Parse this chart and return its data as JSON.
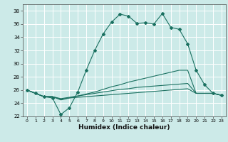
{
  "xlabel": "Humidex (Indice chaleur)",
  "bg_color": "#cceae8",
  "grid_color": "#ffffff",
  "line_color": "#1a7060",
  "x": [
    0,
    1,
    2,
    3,
    4,
    5,
    6,
    7,
    8,
    9,
    10,
    11,
    12,
    13,
    14,
    15,
    16,
    17,
    18,
    19,
    20,
    21,
    22,
    23
  ],
  "series1": [
    26,
    25.5,
    25.0,
    24.8,
    22.3,
    23.3,
    25.7,
    29.0,
    32.0,
    34.5,
    36.3,
    37.5,
    37.2,
    36.1,
    36.2,
    36.0,
    37.6,
    35.5,
    35.2,
    33.0,
    29.0,
    26.8,
    25.5,
    25.2
  ],
  "series2": [
    26,
    25.5,
    25.0,
    25.0,
    24.5,
    24.8,
    25.1,
    25.4,
    25.7,
    26.1,
    26.5,
    26.8,
    27.2,
    27.5,
    27.8,
    28.1,
    28.4,
    28.7,
    29.0,
    29.0,
    25.5,
    25.5,
    25.5,
    25.2
  ],
  "series3": [
    26,
    25.5,
    25.0,
    25.0,
    24.7,
    24.9,
    25.1,
    25.3,
    25.5,
    25.7,
    25.9,
    26.1,
    26.2,
    26.4,
    26.5,
    26.6,
    26.7,
    26.8,
    26.9,
    27.0,
    25.5,
    25.5,
    25.5,
    25.2
  ],
  "series4": [
    26,
    25.5,
    25.0,
    25.0,
    24.6,
    24.8,
    24.9,
    25.0,
    25.1,
    25.2,
    25.3,
    25.4,
    25.5,
    25.6,
    25.7,
    25.8,
    25.9,
    26.0,
    26.1,
    26.2,
    25.5,
    25.5,
    25.5,
    25.2
  ],
  "ylim": [
    22,
    39
  ],
  "xlim": [
    -0.5,
    23.5
  ],
  "yticks": [
    22,
    24,
    26,
    28,
    30,
    32,
    34,
    36,
    38
  ],
  "xticks": [
    0,
    1,
    2,
    3,
    4,
    5,
    6,
    7,
    8,
    9,
    10,
    11,
    12,
    13,
    14,
    15,
    16,
    17,
    18,
    19,
    20,
    21,
    22,
    23
  ],
  "xtick_labels": [
    "0",
    "1",
    "2",
    "3",
    "4",
    "5",
    "6",
    "7",
    "8",
    "9",
    "10",
    "11",
    "12",
    "13",
    "14",
    "15",
    "16",
    "17",
    "18",
    "19",
    "20",
    "21",
    "22",
    "23"
  ]
}
